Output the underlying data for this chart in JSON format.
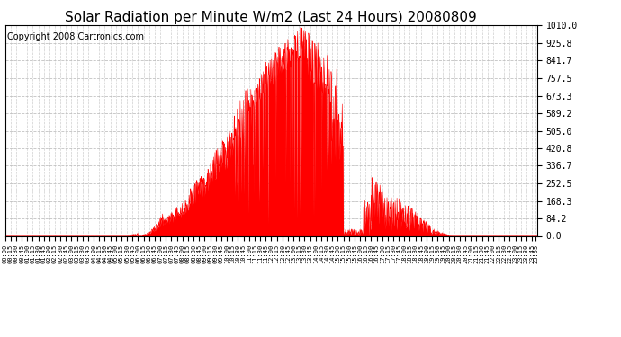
{
  "title": "Solar Radiation per Minute W/m2 (Last 24 Hours) 20080809",
  "copyright": "Copyright 2008 Cartronics.com",
  "y_ticks": [
    0.0,
    84.2,
    168.3,
    252.5,
    336.7,
    420.8,
    505.0,
    589.2,
    673.3,
    757.5,
    841.7,
    925.8,
    1010.0
  ],
  "ymax": 1010.0,
  "ymin": 0.0,
  "fill_color": "#ff0000",
  "line_color": "#ff0000",
  "dashed_line_color": "#ff0000",
  "bg_color": "white",
  "grid_color": "#bbbbbb",
  "title_fontsize": 11,
  "copyright_fontsize": 7
}
